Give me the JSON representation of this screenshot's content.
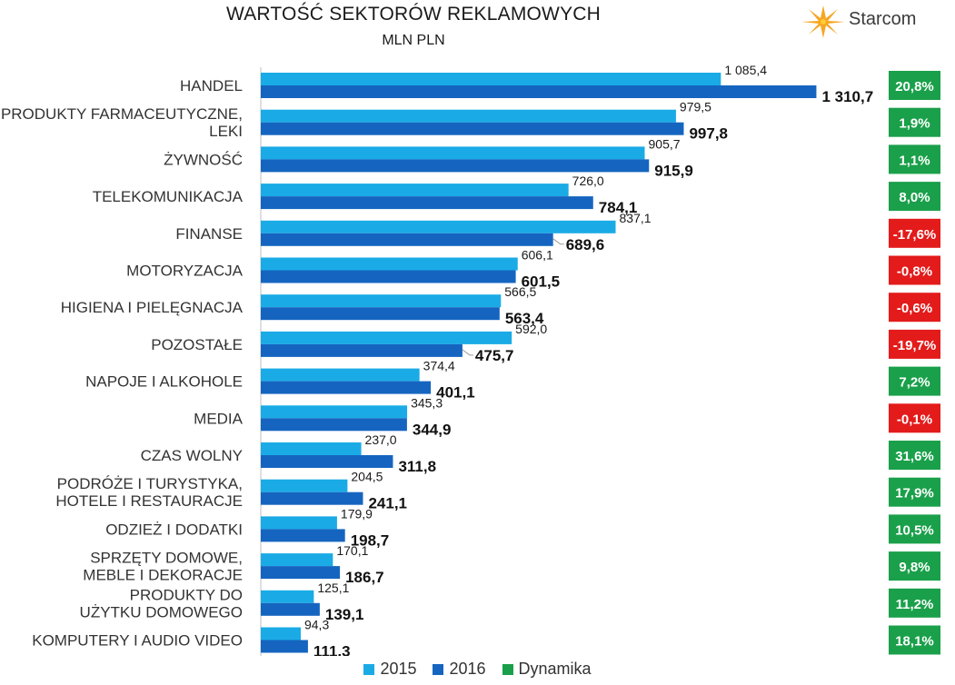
{
  "title": "WARTOŚĆ SEKTORÓW REKLAMOWYCH",
  "subtitle": "MLN PLN",
  "brand": {
    "name": "Starcom",
    "icon": "starcom-star-logo"
  },
  "colors": {
    "s2015": "#1aabe6",
    "s2016": "#1565c0",
    "positive": "#1aa04a",
    "negative": "#e31b1b",
    "axis": "#bfbfbf"
  },
  "legend": [
    "2015",
    "2016",
    "Dynamika"
  ],
  "chart_data": {
    "type": "bar",
    "orientation": "horizontal",
    "title": "WARTOŚĆ SEKTORÓW REKLAMOWYCH",
    "subtitle": "MLN PLN",
    "xlim": [
      0,
      1400
    ],
    "grid": false,
    "legend_position": "bottom",
    "categories": [
      [
        "HANDEL"
      ],
      [
        "PRODUKTY FARMACEUTYCZNE,",
        "LEKI"
      ],
      [
        "ŻYWNOŚĆ"
      ],
      [
        "TELEKOMUNIKACJA"
      ],
      [
        "FINANSE"
      ],
      [
        "MOTORYZACJA"
      ],
      [
        "HIGIENA I PIELĘGNACJA"
      ],
      [
        "POZOSTAŁE"
      ],
      [
        "NAPOJE I ALKOHOLE"
      ],
      [
        "MEDIA"
      ],
      [
        "CZAS WOLNY"
      ],
      [
        "PODRÓŻE I TURYSTYKA,",
        "HOTELE I RESTAURACJE"
      ],
      [
        "ODZIEŻ I DODATKI"
      ],
      [
        "SPRZĘTY DOMOWE,",
        "MEBLE I DEKORACJE"
      ],
      [
        "PRODUKTY DO",
        "UŻYTKU DOMOWEGO"
      ],
      [
        "KOMPUTERY I AUDIO VIDEO"
      ]
    ],
    "series": [
      {
        "name": "2015",
        "values": [
          1085.4,
          979.5,
          905.7,
          726.0,
          837.1,
          606.1,
          566.5,
          592.0,
          374.4,
          345.3,
          237.0,
          204.5,
          179.9,
          170.1,
          125.1,
          94.3
        ],
        "labels": [
          "1 085,4",
          "979,5",
          "905,7",
          "726,0",
          "837,1",
          "606,1",
          "566,5",
          "592,0",
          "374,4",
          "345,3",
          "237,0",
          "204,5",
          "179,9",
          "170,1",
          "125,1",
          "94,3"
        ]
      },
      {
        "name": "2016",
        "values": [
          1310.7,
          997.8,
          915.9,
          784.1,
          689.6,
          601.5,
          563.4,
          475.7,
          401.1,
          344.9,
          311.8,
          241.1,
          198.7,
          186.7,
          139.1,
          111.3
        ],
        "labels": [
          "1 310,7",
          "997,8",
          "915,9",
          "784,1",
          "689,6",
          "601,5",
          "563,4",
          "475,7",
          "401,1",
          "344,9",
          "311,8",
          "241,1",
          "198,7",
          "186,7",
          "139,1",
          "111,3"
        ]
      }
    ],
    "dynamika": {
      "name": "Dynamika",
      "values": [
        20.8,
        1.9,
        1.1,
        8.0,
        -17.6,
        -0.8,
        -0.6,
        -19.7,
        7.2,
        -0.1,
        31.6,
        17.9,
        10.5,
        9.8,
        11.2,
        18.1
      ],
      "labels": [
        "20,8%",
        "1,9%",
        "1,1%",
        "8,0%",
        "-17,6%",
        "-0,8%",
        "-0,6%",
        "-19,7%",
        "7,2%",
        "-0,1%",
        "31,6%",
        "17,9%",
        "10,5%",
        "9,8%",
        "11,2%",
        "18,1%"
      ]
    }
  }
}
